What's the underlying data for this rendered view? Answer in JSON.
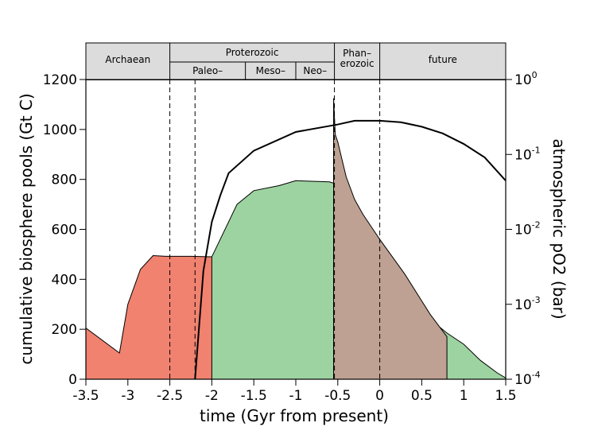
{
  "chart_data": {
    "type": "area",
    "xlabel": "time (Gyr from present)",
    "ylabel": "cumulative biosphere pools (Gt C)",
    "y2label": "atmospheric pO2 (bar)",
    "xlim": [
      -3.5,
      1.5
    ],
    "ylim": [
      0,
      1200
    ],
    "y2lim_log10": [
      -4,
      0
    ],
    "x_ticks": [
      "-3.5",
      "-3",
      "-2.5",
      "-2",
      "-1.5",
      "-1",
      "-0.5",
      "0",
      "0.5",
      "1",
      "1.5"
    ],
    "y_ticks": [
      "0",
      "200",
      "400",
      "600",
      "800",
      "1000",
      "1200"
    ],
    "y2_ticks": [
      {
        "base": "10",
        "exp": "0",
        "log": 0
      },
      {
        "base": "10",
        "exp": "-1",
        "log": -1
      },
      {
        "base": "10",
        "exp": "-2",
        "log": -2
      },
      {
        "base": "10",
        "exp": "-3",
        "log": -3
      },
      {
        "base": "10",
        "exp": "-4",
        "log": -4
      }
    ],
    "grid": false,
    "colors": {
      "red": "#f0826f",
      "green": "#9dd3a0",
      "brown": "#bea192",
      "band": "#dcdcdc"
    },
    "eras": [
      {
        "label": "Archaean",
        "start": -3.5,
        "end": -2.5
      },
      {
        "label": "Proterozoic",
        "start": -2.5,
        "end": -0.54
      },
      {
        "label": "Phan–\nerozoic",
        "start": -0.54,
        "end": 0
      },
      {
        "label": "future",
        "start": 0,
        "end": 1.5
      }
    ],
    "sub_eras": [
      {
        "label": "Paleo–",
        "start": -2.5,
        "end": -1.6
      },
      {
        "label": "Meso–",
        "start": -1.6,
        "end": -1.0
      },
      {
        "label": "Neo–",
        "start": -1.0,
        "end": -0.54
      }
    ],
    "dashed_lines_x": [
      -2.5,
      -2.2,
      -0.54,
      0
    ],
    "series": [
      {
        "color": "#f0826f",
        "x": [
          -3.5,
          -3.1,
          -3.0,
          -2.85,
          -2.7,
          -2.55,
          -2.25,
          -2.0,
          -1.5,
          -1.1,
          -0.7,
          -0.55,
          -0.54,
          -0.5,
          -0.45,
          -0.4,
          -0.3,
          -0.2,
          0,
          0.5,
          0.7,
          0.8,
          1.0,
          1.2,
          1.4,
          1.5
        ],
        "y": [
          205,
          105,
          300,
          440,
          495,
          492,
          492,
          490,
          445,
          430,
          405,
          395,
          175,
          110,
          95,
          90,
          85,
          80,
          75,
          68,
          65,
          65,
          60,
          40,
          18,
          5
        ]
      },
      {
        "color": "#9dd3a0",
        "x": [
          -2.0,
          -1.7,
          -1.5,
          -1.2,
          -1.0,
          -0.6,
          -0.55,
          -0.54,
          -0.5,
          -0.45,
          -0.4,
          -0.3,
          -0.2,
          0,
          0.3,
          0.6,
          0.8,
          1.0,
          1.2,
          1.4,
          1.5
        ],
        "y": [
          490,
          700,
          755,
          775,
          795,
          790,
          785,
          700,
          580,
          520,
          490,
          440,
          410,
          370,
          300,
          240,
          185,
          140,
          75,
          25,
          5
        ]
      },
      {
        "color": "#bea192",
        "x": [
          -0.55,
          -0.53,
          -0.5,
          -0.45,
          -0.4,
          -0.3,
          -0.2,
          -0.1,
          0,
          0.3,
          0.6,
          0.8
        ],
        "y": [
          1125,
          980,
          950,
          880,
          810,
          720,
          660,
          610,
          560,
          420,
          260,
          170
        ]
      },
      {
        "name": "pO2",
        "axis": "right",
        "x": [
          -2.2,
          -2.1,
          -2.0,
          -1.9,
          -1.8,
          -1.5,
          -1.0,
          -0.5,
          -0.3,
          0,
          0.25,
          0.5,
          0.75,
          1.0,
          1.25,
          1.5
        ],
        "y_log10": [
          -4,
          -2.55,
          -1.9,
          -1.55,
          -1.25,
          -0.95,
          -0.7,
          -0.6,
          -0.55,
          -0.55,
          -0.57,
          -0.63,
          -0.72,
          -0.86,
          -1.04,
          -1.35
        ]
      }
    ]
  }
}
